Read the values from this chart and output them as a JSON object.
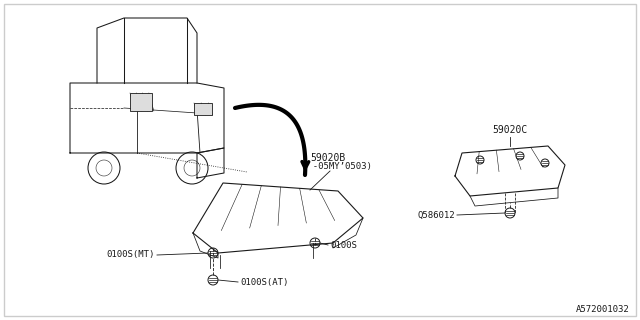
{
  "bg_color": "#ffffff",
  "border_color": "#cccccc",
  "line_color": "#1a1a1a",
  "diagram_id": "A572001032",
  "fig_width": 6.4,
  "fig_height": 3.2,
  "dpi": 100,
  "label_59020B": "59020B",
  "label_59020B_sub": "( -05MY’0503)",
  "label_59020C": "59020C",
  "label_0100S_MT": "0100S(MT)",
  "label_0100S_AT": "0100S(AT)",
  "label_0100S": "0100S",
  "label_Q586012": "Q586012"
}
